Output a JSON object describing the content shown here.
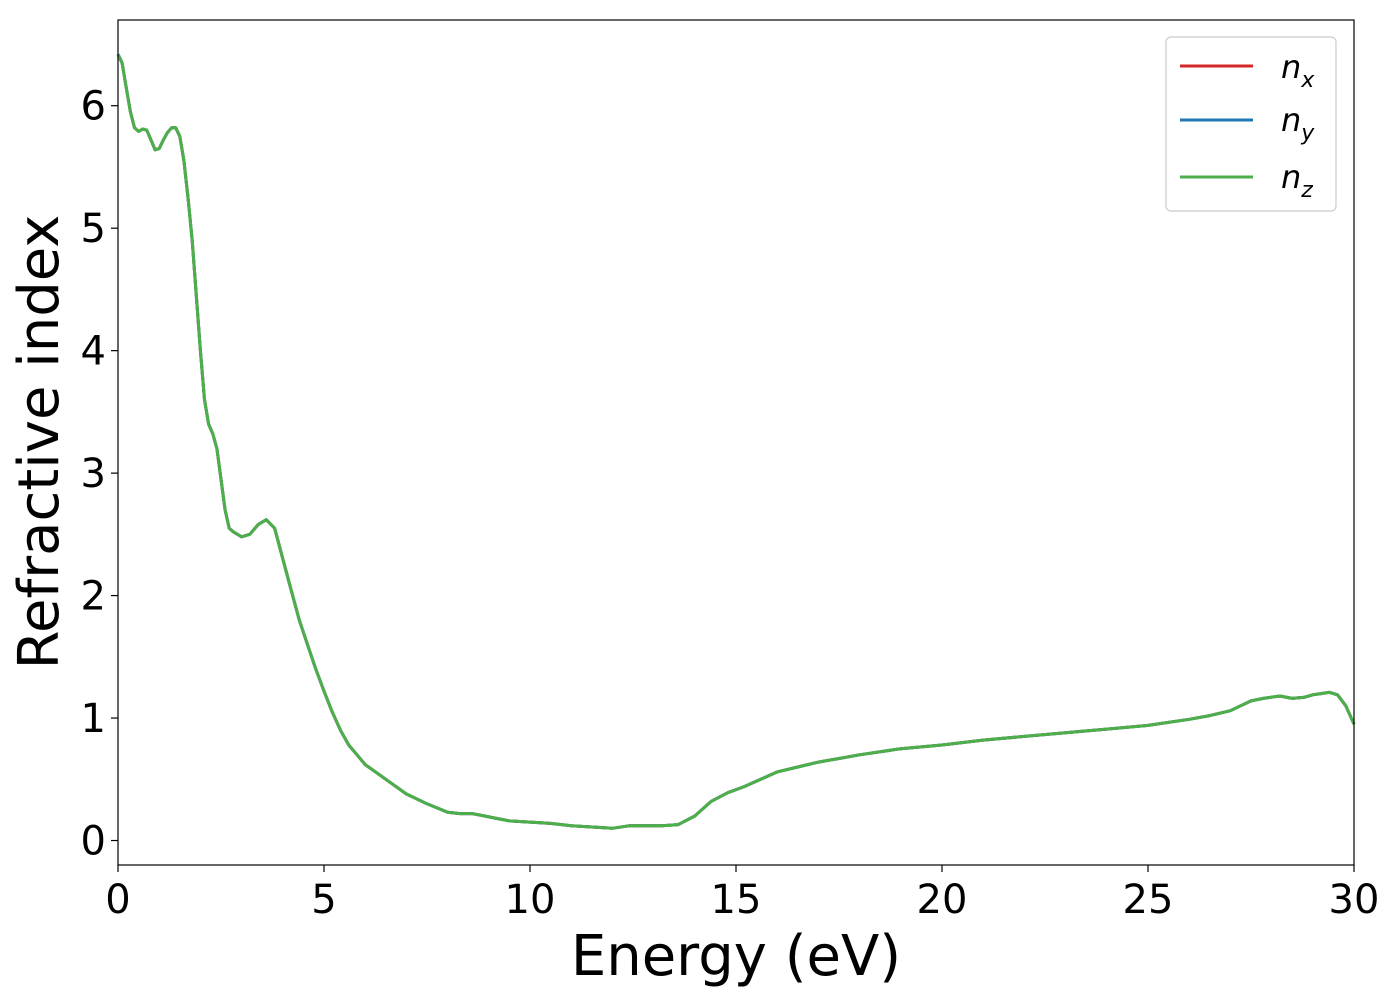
{
  "chart_data": {
    "type": "line",
    "title": "",
    "xlabel": "Energy (eV)",
    "ylabel": "Refractive index",
    "xlim": [
      0,
      30
    ],
    "ylim": [
      -0.2,
      6.7
    ],
    "x_ticks": [
      0,
      5,
      10,
      15,
      20,
      25,
      30
    ],
    "y_ticks": [
      0,
      1,
      2,
      3,
      4,
      5,
      6
    ],
    "grid": false,
    "legend_position": "top-right",
    "series": [
      {
        "name": "n_x",
        "label_main": "n",
        "label_sub": "x",
        "color": "#d62728",
        "x": [
          0,
          0.1,
          0.2,
          0.3,
          0.4,
          0.5,
          0.6,
          0.7,
          0.8,
          0.9,
          1.0,
          1.1,
          1.2,
          1.3,
          1.4,
          1.5,
          1.6,
          1.7,
          1.8,
          1.9,
          2.0,
          2.1,
          2.2,
          2.3,
          2.4,
          2.5,
          2.6,
          2.7,
          2.8,
          2.9,
          3.0,
          3.2,
          3.4,
          3.6,
          3.8,
          4.0,
          4.2,
          4.4,
          4.6,
          4.8,
          5.0,
          5.2,
          5.4,
          5.6,
          5.8,
          6.0,
          6.5,
          7.0,
          7.5,
          8.0,
          8.3,
          8.6,
          8.9,
          9.2,
          9.5,
          10.0,
          10.5,
          11.0,
          11.5,
          12.0,
          12.4,
          12.8,
          13.2,
          13.6,
          14.0,
          14.4,
          14.8,
          15.2,
          15.6,
          16.0,
          16.5,
          17.0,
          17.5,
          18.0,
          19.0,
          20.0,
          21.0,
          22.0,
          23.0,
          24.0,
          25.0,
          26.0,
          26.5,
          27.0,
          27.5,
          27.8,
          28.0,
          28.2,
          28.5,
          28.8,
          29.0,
          29.2,
          29.4,
          29.6,
          29.8,
          30.0
        ],
        "y": [
          6.42,
          6.35,
          6.15,
          5.95,
          5.82,
          5.79,
          5.81,
          5.8,
          5.72,
          5.64,
          5.65,
          5.72,
          5.78,
          5.82,
          5.82,
          5.75,
          5.55,
          5.25,
          4.9,
          4.45,
          4.0,
          3.6,
          3.4,
          3.32,
          3.2,
          2.95,
          2.7,
          2.55,
          2.52,
          2.5,
          2.48,
          2.5,
          2.58,
          2.62,
          2.55,
          2.3,
          2.05,
          1.8,
          1.6,
          1.4,
          1.22,
          1.05,
          0.9,
          0.78,
          0.7,
          0.62,
          0.5,
          0.38,
          0.3,
          0.23,
          0.22,
          0.22,
          0.2,
          0.18,
          0.16,
          0.15,
          0.14,
          0.12,
          0.11,
          0.1,
          0.12,
          0.12,
          0.12,
          0.13,
          0.2,
          0.32,
          0.39,
          0.44,
          0.5,
          0.56,
          0.6,
          0.64,
          0.67,
          0.7,
          0.75,
          0.78,
          0.82,
          0.85,
          0.88,
          0.91,
          0.94,
          0.99,
          1.02,
          1.06,
          1.14,
          1.16,
          1.17,
          1.18,
          1.16,
          1.17,
          1.19,
          1.2,
          1.21,
          1.19,
          1.1,
          0.95
        ]
      },
      {
        "name": "n_y",
        "label_main": "n",
        "label_sub": "y",
        "color": "#1f77b4",
        "x": [
          0,
          0.1,
          0.2,
          0.3,
          0.4,
          0.5,
          0.6,
          0.7,
          0.8,
          0.9,
          1.0,
          1.1,
          1.2,
          1.3,
          1.4,
          1.5,
          1.6,
          1.7,
          1.8,
          1.9,
          2.0,
          2.1,
          2.2,
          2.3,
          2.4,
          2.5,
          2.6,
          2.7,
          2.8,
          2.9,
          3.0,
          3.2,
          3.4,
          3.6,
          3.8,
          4.0,
          4.2,
          4.4,
          4.6,
          4.8,
          5.0,
          5.2,
          5.4,
          5.6,
          5.8,
          6.0,
          6.5,
          7.0,
          7.5,
          8.0,
          8.3,
          8.6,
          8.9,
          9.2,
          9.5,
          10.0,
          10.5,
          11.0,
          11.5,
          12.0,
          12.4,
          12.8,
          13.2,
          13.6,
          14.0,
          14.4,
          14.8,
          15.2,
          15.6,
          16.0,
          16.5,
          17.0,
          17.5,
          18.0,
          19.0,
          20.0,
          21.0,
          22.0,
          23.0,
          24.0,
          25.0,
          26.0,
          26.5,
          27.0,
          27.5,
          27.8,
          28.0,
          28.2,
          28.5,
          28.8,
          29.0,
          29.2,
          29.4,
          29.6,
          29.8,
          30.0
        ],
        "y": [
          6.42,
          6.35,
          6.15,
          5.95,
          5.82,
          5.79,
          5.81,
          5.8,
          5.72,
          5.64,
          5.65,
          5.72,
          5.78,
          5.82,
          5.82,
          5.75,
          5.55,
          5.25,
          4.9,
          4.45,
          4.0,
          3.6,
          3.4,
          3.32,
          3.2,
          2.95,
          2.7,
          2.55,
          2.52,
          2.5,
          2.48,
          2.5,
          2.58,
          2.62,
          2.55,
          2.3,
          2.05,
          1.8,
          1.6,
          1.4,
          1.22,
          1.05,
          0.9,
          0.78,
          0.7,
          0.62,
          0.5,
          0.38,
          0.3,
          0.23,
          0.22,
          0.22,
          0.2,
          0.18,
          0.16,
          0.15,
          0.14,
          0.12,
          0.11,
          0.1,
          0.12,
          0.12,
          0.12,
          0.13,
          0.2,
          0.32,
          0.39,
          0.44,
          0.5,
          0.56,
          0.6,
          0.64,
          0.67,
          0.7,
          0.75,
          0.78,
          0.82,
          0.85,
          0.88,
          0.91,
          0.94,
          0.99,
          1.02,
          1.06,
          1.14,
          1.16,
          1.17,
          1.18,
          1.16,
          1.17,
          1.19,
          1.2,
          1.21,
          1.19,
          1.1,
          0.95
        ]
      },
      {
        "name": "n_z",
        "label_main": "n",
        "label_sub": "z",
        "color": "#4daf4a",
        "x": [
          0,
          0.1,
          0.2,
          0.3,
          0.4,
          0.5,
          0.6,
          0.7,
          0.8,
          0.9,
          1.0,
          1.1,
          1.2,
          1.3,
          1.4,
          1.5,
          1.6,
          1.7,
          1.8,
          1.9,
          2.0,
          2.1,
          2.2,
          2.3,
          2.4,
          2.5,
          2.6,
          2.7,
          2.8,
          2.9,
          3.0,
          3.2,
          3.4,
          3.6,
          3.8,
          4.0,
          4.2,
          4.4,
          4.6,
          4.8,
          5.0,
          5.2,
          5.4,
          5.6,
          5.8,
          6.0,
          6.5,
          7.0,
          7.5,
          8.0,
          8.3,
          8.6,
          8.9,
          9.2,
          9.5,
          10.0,
          10.5,
          11.0,
          11.5,
          12.0,
          12.4,
          12.8,
          13.2,
          13.6,
          14.0,
          14.4,
          14.8,
          15.2,
          15.6,
          16.0,
          16.5,
          17.0,
          17.5,
          18.0,
          19.0,
          20.0,
          21.0,
          22.0,
          23.0,
          24.0,
          25.0,
          26.0,
          26.5,
          27.0,
          27.5,
          27.8,
          28.0,
          28.2,
          28.5,
          28.8,
          29.0,
          29.2,
          29.4,
          29.6,
          29.8,
          30.0
        ],
        "y": [
          6.42,
          6.35,
          6.15,
          5.95,
          5.82,
          5.79,
          5.81,
          5.8,
          5.72,
          5.64,
          5.65,
          5.72,
          5.78,
          5.82,
          5.82,
          5.75,
          5.55,
          5.25,
          4.9,
          4.45,
          4.0,
          3.6,
          3.4,
          3.32,
          3.2,
          2.95,
          2.7,
          2.55,
          2.52,
          2.5,
          2.48,
          2.5,
          2.58,
          2.62,
          2.55,
          2.3,
          2.05,
          1.8,
          1.6,
          1.4,
          1.22,
          1.05,
          0.9,
          0.78,
          0.7,
          0.62,
          0.5,
          0.38,
          0.3,
          0.23,
          0.22,
          0.22,
          0.2,
          0.18,
          0.16,
          0.15,
          0.14,
          0.12,
          0.11,
          0.1,
          0.12,
          0.12,
          0.12,
          0.13,
          0.2,
          0.32,
          0.39,
          0.44,
          0.5,
          0.56,
          0.6,
          0.64,
          0.67,
          0.7,
          0.75,
          0.78,
          0.82,
          0.85,
          0.88,
          0.91,
          0.94,
          0.99,
          1.02,
          1.06,
          1.14,
          1.16,
          1.17,
          1.18,
          1.16,
          1.17,
          1.19,
          1.2,
          1.21,
          1.19,
          1.1,
          0.95
        ]
      }
    ]
  }
}
